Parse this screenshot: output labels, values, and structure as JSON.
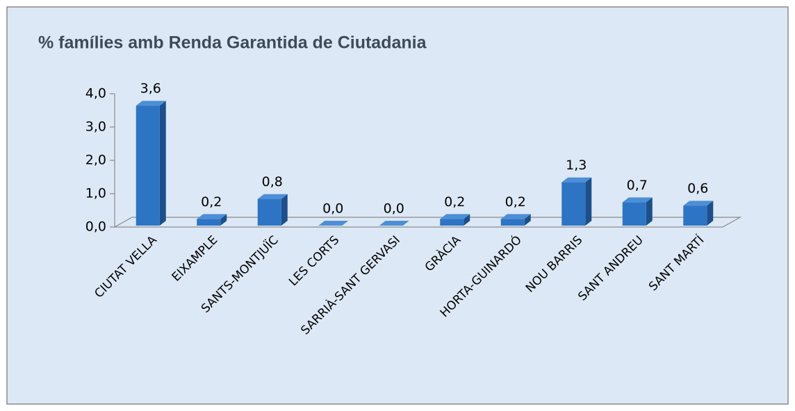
{
  "chart_data": {
    "type": "bar3d",
    "title": "% famílies amb Renda Garantida de Ciutadania",
    "categories": [
      "CIUTAT VELLA",
      "EIXAMPLE",
      "SANTS-MONTJUÏC",
      "LES CORTS",
      "SARRIÀ-SANT GERVASI",
      "GRÀCIA",
      "HORTA-GUINARDÓ",
      "NOU BARRIS",
      "SANT ANDREU",
      "SANT MARTÍ"
    ],
    "values": [
      3.6,
      0.2,
      0.8,
      0.0,
      0.0,
      0.2,
      0.2,
      1.3,
      0.7,
      0.6
    ],
    "value_labels": [
      "3,6",
      "0,2",
      "0,8",
      "0,0",
      "0,0",
      "0,2",
      "0,2",
      "1,3",
      "0,7",
      "0,6"
    ],
    "color": "#2e74c4",
    "ylim": [
      0,
      4
    ],
    "yticks": [
      {
        "value": 0,
        "label": "0,0"
      },
      {
        "value": 1,
        "label": "1,0"
      },
      {
        "value": 2,
        "label": "2,0"
      },
      {
        "value": 3,
        "label": "3,0"
      },
      {
        "value": 4,
        "label": "4,0"
      }
    ],
    "grid": false
  }
}
